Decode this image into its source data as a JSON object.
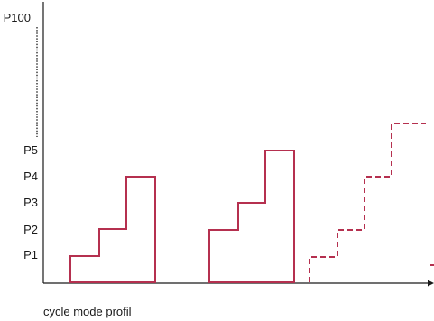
{
  "diagram": {
    "y_levels": [
      "P1",
      "P2",
      "P3",
      "P4",
      "P5"
    ],
    "y_top_label": "P100",
    "caption": "cycle mode profil",
    "colors": {
      "profile": "#b5304f",
      "axis": "#1a1a1a",
      "text": "#1a1a1a"
    },
    "profiles": [
      {
        "style": "solid",
        "levels": [
          1,
          2,
          4
        ]
      },
      {
        "style": "solid",
        "levels": [
          2,
          3,
          5
        ]
      },
      {
        "style": "dashed",
        "levels": [
          1,
          2,
          4,
          6
        ]
      }
    ]
  }
}
